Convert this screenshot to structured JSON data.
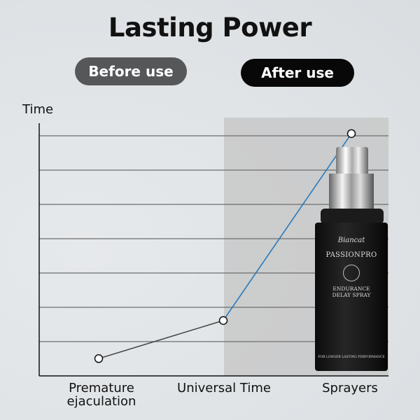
{
  "title": "Lasting Power",
  "legend": {
    "before": "Before use",
    "after": "After use"
  },
  "colors": {
    "before_line": "#444444",
    "after_line": "#2a7bbd",
    "after_shade": "#c4c4c4",
    "after_pill": "#080808",
    "before_pill": "#555759"
  },
  "product": {
    "brand": "Biancat",
    "name": "PASSIONPRO",
    "line1": "ENDURANCE",
    "line2": "DELAY SPRAY",
    "tagline": "FOR LONGER LASTING PERFORMANCE"
  },
  "chart_data": {
    "type": "line",
    "ylabel": "Time",
    "xlabel": "",
    "categories": [
      "Premature ejaculation",
      "Universal Time",
      "Sprayers"
    ],
    "values": [
      0.5,
      1.6,
      7
    ],
    "ylim": [
      0,
      7.3
    ],
    "grid": true,
    "y_tick_labels": false,
    "highlighted_region": "Universal Time to Sprayers (after use)"
  }
}
